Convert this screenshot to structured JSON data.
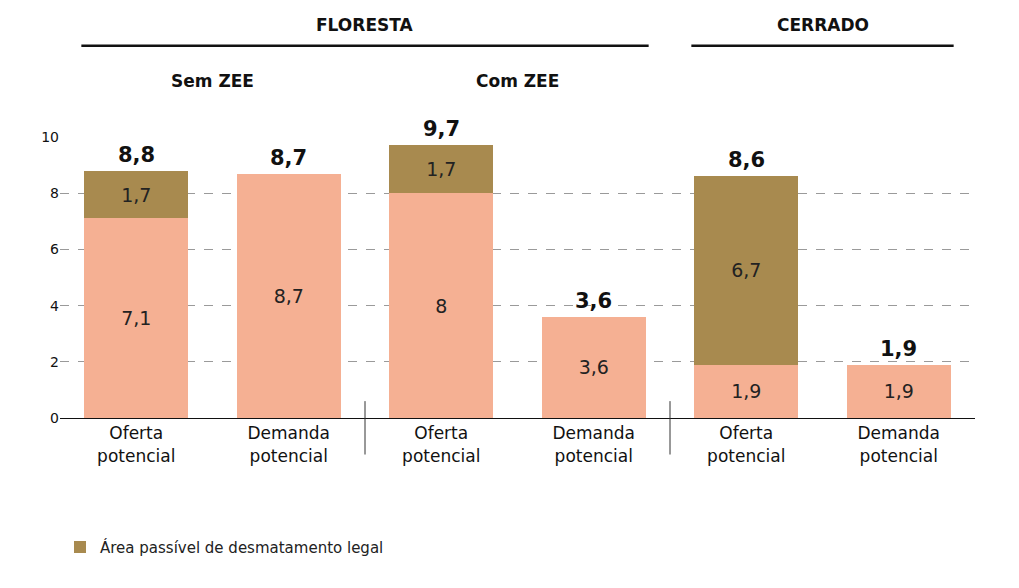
{
  "chart_data": {
    "type": "bar",
    "stacked": true,
    "data_labels": true,
    "grid": true,
    "legend": "bottom left",
    "categories": [
      "Oferta potencial",
      "Demanda potencial",
      "Oferta potencial",
      "Demanda potencial",
      "Oferta potencial",
      "Demanda potencial"
    ],
    "series": [
      {
        "color": "#f5b093",
        "values": [
          7.1,
          8.7,
          8,
          3.6,
          1.9,
          1.9
        ],
        "value_labels": [
          "7,1",
          "8,7",
          "8",
          "3,6",
          "1,9",
          "1,9"
        ]
      },
      {
        "name": "Área passível de desmatamento legal",
        "color": "#a88a4f",
        "values": [
          1.7,
          null,
          1.7,
          null,
          6.7,
          null
        ],
        "value_labels": [
          "1,7",
          null,
          "1,7",
          null,
          "6,7",
          null
        ]
      }
    ],
    "totals": {
      "values": [
        8.8,
        8.7,
        9.7,
        3.6,
        8.6,
        1.9
      ],
      "value_labels": [
        "8,8",
        "8,7",
        "9,7",
        "3,6",
        "8,6",
        "1,9"
      ]
    },
    "groups": [
      {
        "label": "FLORESTA",
        "categories": [
          0,
          1,
          2,
          3
        ]
      },
      {
        "label": "CERRADO",
        "categories": [
          4,
          5
        ]
      }
    ],
    "subgroups": [
      {
        "label": "Sem ZEE",
        "categories": [
          0,
          1
        ]
      },
      {
        "label": "Com ZEE",
        "categories": [
          2,
          3
        ]
      }
    ],
    "ylim": [
      0,
      10
    ],
    "yticks": [
      0,
      2,
      4,
      6,
      8,
      10
    ]
  }
}
